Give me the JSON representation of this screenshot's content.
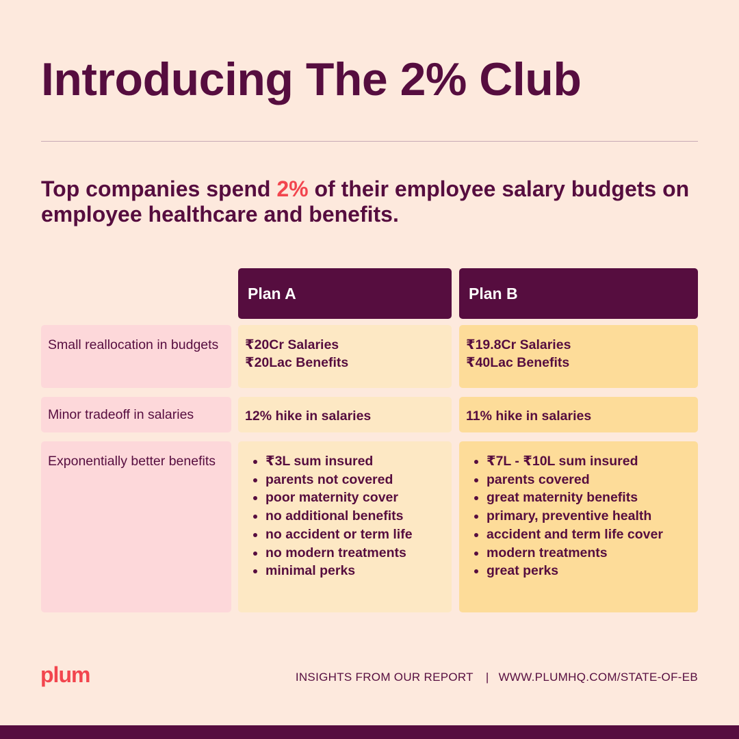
{
  "title": "Introducing The 2% Club",
  "subtitle": {
    "before": "Top companies spend ",
    "highlight": "2%",
    "after": " of their employee salary budgets on employee healthcare and benefits."
  },
  "table": {
    "plans": [
      "Plan A",
      "Plan B"
    ],
    "rows": [
      {
        "label": "Small reallocation in budgets",
        "plan_a": [
          "₹20Cr Salaries",
          "₹20Lac Benefits"
        ],
        "plan_b": [
          "₹19.8Cr Salaries",
          "₹40Lac Benefits"
        ]
      },
      {
        "label": "Minor tradeoff in salaries",
        "plan_a": [
          "12% hike in salaries"
        ],
        "plan_b": [
          "11% hike in salaries"
        ]
      },
      {
        "label": "Exponentially better benefits",
        "plan_a": [
          "₹3L sum insured",
          "parents not covered",
          "poor maternity cover",
          "no additional benefits",
          "no accident or term life",
          "no modern treatments",
          "minimal perks"
        ],
        "plan_b": [
          "₹7L - ₹10L sum insured",
          "parents covered",
          "great maternity benefits",
          "primary, preventive health",
          "accident and term life cover",
          "modern treatments",
          "great perks"
        ]
      }
    ]
  },
  "footer": {
    "logo": "plum",
    "insights": "INSIGHTS FROM OUR REPORT",
    "separator": "|",
    "url": "WWW.PLUMHQ.COM/STATE-OF-EB"
  },
  "colors": {
    "background": "#FDE9DD",
    "primary": "#560D3F",
    "accent": "#F2454E",
    "label_cell": "#FDD8DA",
    "plan_a_cell": "#FDE8C4",
    "plan_b_cell": "#FDDC99"
  }
}
